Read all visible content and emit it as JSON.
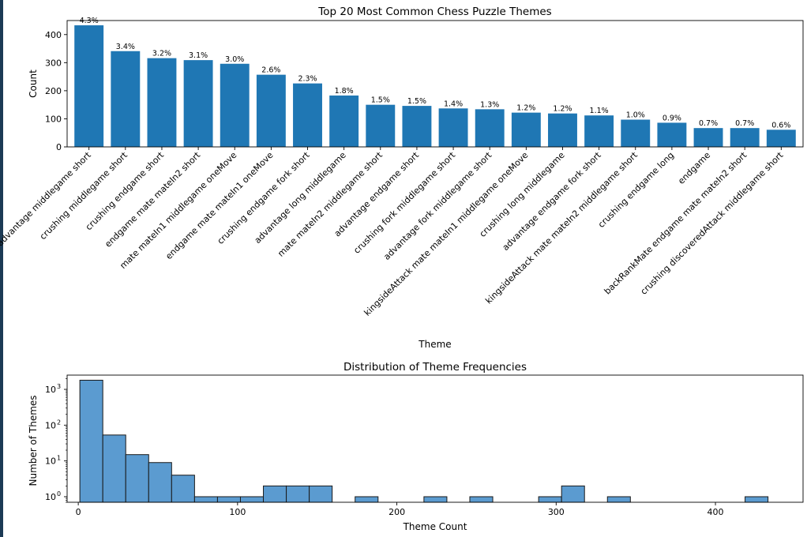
{
  "colors": {
    "bar": "#1f77b4",
    "hist": "#5b9bd0",
    "hist_edge": "#1a1a1a",
    "edge_strip": "#1c3a55"
  },
  "chart_data": [
    {
      "type": "bar",
      "title": "Top 20 Most Common Chess Puzzle Themes",
      "xlabel": "Theme",
      "ylabel": "Count",
      "ylim": [
        0,
        450
      ],
      "yticks": [
        0,
        100,
        200,
        300,
        400
      ],
      "categories": [
        "advantage middlegame short",
        "crushing middlegame short",
        "crushing endgame short",
        "endgame mate mateIn2 short",
        "mate mateIn1 middlegame oneMove",
        "endgame mate mateIn1 oneMove",
        "crushing endgame fork short",
        "advantage long middlegame",
        "mate mateIn2 middlegame short",
        "advantage endgame short",
        "crushing fork middlegame short",
        "advantage fork middlegame short",
        "kingsideAttack mate mateIn1 middlegame oneMove",
        "crushing long middlegame",
        "advantage endgame fork short",
        "kingsideAttack mate mateIn2 middlegame short",
        "crushing endgame long",
        "endgame",
        "backRankMate endgame mate mateIn2 short",
        "crushing discoveredAttack middlegame short"
      ],
      "values": [
        433,
        341,
        316,
        309,
        296,
        257,
        226,
        183,
        150,
        146,
        137,
        134,
        122,
        119,
        112,
        97,
        86,
        67,
        67,
        61
      ],
      "labels": [
        "4.3%",
        "3.4%",
        "3.2%",
        "3.1%",
        "3.0%",
        "2.6%",
        "2.3%",
        "1.8%",
        "1.5%",
        "1.5%",
        "1.4%",
        "1.3%",
        "1.2%",
        "1.2%",
        "1.1%",
        "1.0%",
        "0.9%",
        "0.7%",
        "0.7%",
        "0.6%"
      ],
      "grid": false,
      "legend": "none"
    },
    {
      "type": "histogram",
      "title": "Distribution of Theme Frequencies",
      "xlabel": "Theme Count",
      "ylabel": "Number of Themes",
      "yscale": "log",
      "xlim": [
        -7,
        455
      ],
      "ylim": [
        0.7,
        2500
      ],
      "xticks": [
        0,
        100,
        200,
        300,
        400
      ],
      "ytick_labels": [
        {
          "base": "10",
          "exp": "0"
        },
        {
          "base": "10",
          "exp": "1"
        },
        {
          "base": "10",
          "exp": "2"
        },
        {
          "base": "10",
          "exp": "3"
        }
      ],
      "bin_start": 1,
      "bin_width": 14.4,
      "counts": [
        1800,
        53,
        15,
        9,
        4,
        1,
        1,
        1,
        2,
        2,
        2,
        0,
        1,
        0,
        0,
        1,
        0,
        1,
        0,
        0,
        1,
        2,
        0,
        1,
        0,
        0,
        0,
        0,
        0,
        1
      ],
      "grid": false,
      "legend": "none"
    }
  ]
}
